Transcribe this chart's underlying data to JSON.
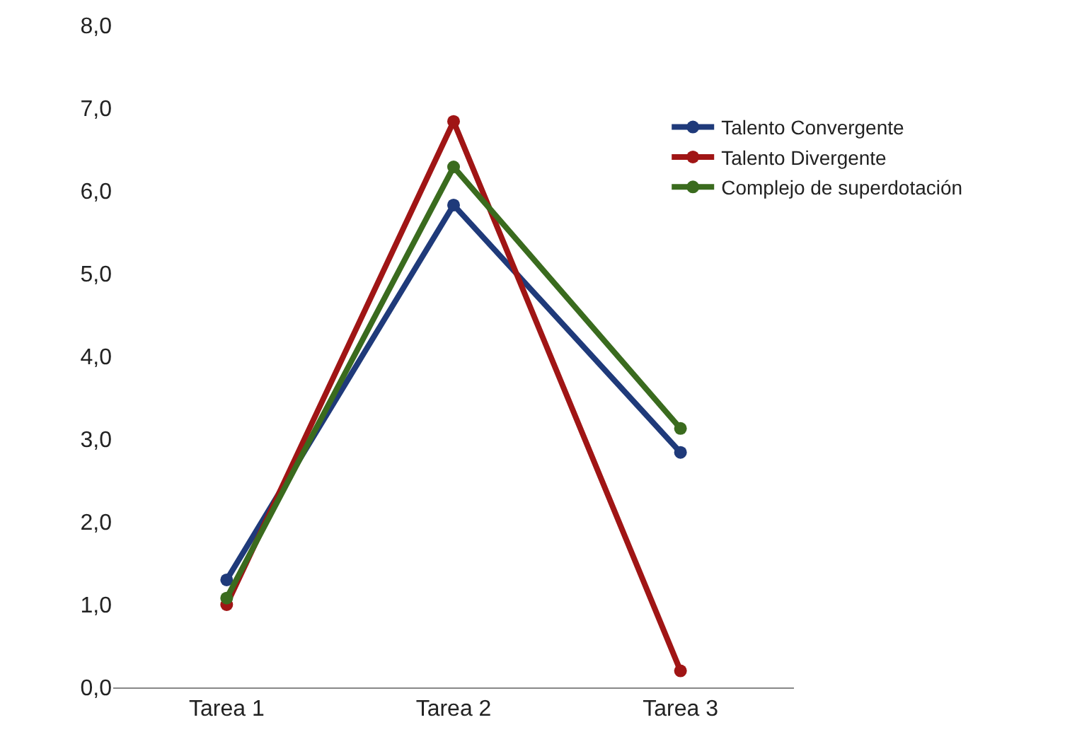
{
  "chart_data": {
    "type": "line",
    "categories": [
      "Tarea 1",
      "Tarea 2",
      "Tarea 3"
    ],
    "series": [
      {
        "name": "Talento Convergente",
        "color": "#1f3a7a",
        "values": [
          1.3,
          5.83,
          2.84
        ]
      },
      {
        "name": "Talento Divergente",
        "color": "#a01515",
        "values": [
          1.0,
          6.84,
          0.2
        ]
      },
      {
        "name": "Complejo de superdotación",
        "color": "#3a6b1e",
        "values": [
          1.08,
          6.29,
          3.13
        ]
      }
    ],
    "ylim": [
      0,
      8
    ],
    "yticks": [
      {
        "value": 0,
        "label": "0,0"
      },
      {
        "value": 1,
        "label": "1,0"
      },
      {
        "value": 2,
        "label": "2,0"
      },
      {
        "value": 3,
        "label": "3,0"
      },
      {
        "value": 4,
        "label": "4,0"
      },
      {
        "value": 5,
        "label": "5,0"
      },
      {
        "value": 6,
        "label": "6,0"
      },
      {
        "value": 7,
        "label": "7,0"
      },
      {
        "value": 8,
        "label": "8,0"
      }
    ],
    "grid": false,
    "legend": "top right",
    "marker": "circle",
    "line_style": "solid"
  }
}
